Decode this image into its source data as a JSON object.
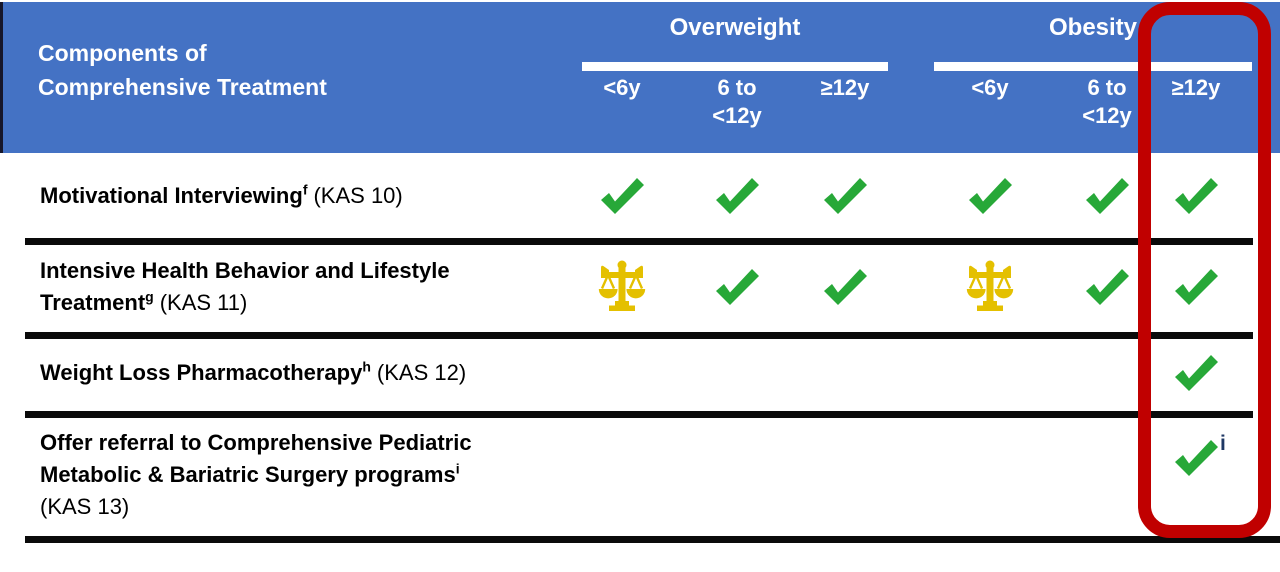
{
  "header": {
    "corner_label": "Components of\nComprehensive Treatment",
    "groups": [
      {
        "label": "Overweight"
      },
      {
        "label": "Obesity"
      }
    ],
    "age_labels": [
      "<6y",
      "6 to <12y",
      "≥12y",
      "<6y",
      "6 to <12y",
      "≥12y"
    ]
  },
  "rows": [
    {
      "label": "Motivational Interviewing",
      "superscript": "f",
      "kas": "(KAS 10)",
      "cells": [
        "check",
        "check",
        "check",
        "check",
        "check",
        "check"
      ]
    },
    {
      "label": "Intensive Health Behavior and Lifestyle\nTreatment",
      "superscript": "g",
      "kas": "(KAS 11)",
      "cells": [
        "scales",
        "check",
        "check",
        "scales",
        "check",
        "check"
      ]
    },
    {
      "label": "Weight Loss Pharmacotherapy",
      "superscript": "h",
      "kas": "(KAS 12)",
      "cells": [
        "none",
        "none",
        "none",
        "none",
        "none",
        "check"
      ]
    },
    {
      "label": "Offer referral to Comprehensive Pediatric\nMetabolic & Bariatric Surgery programs",
      "superscript": "i",
      "kas": "(KAS 13)",
      "cells": [
        "none",
        "none",
        "none",
        "none",
        "none",
        "check-i"
      ]
    }
  ],
  "icon_legend": {
    "check": "green-checkmark",
    "scales": "gold-balance-scale",
    "check-i": "green-checkmark-with-blue-superscript-i",
    "none": "empty-cell"
  },
  "highlight": {
    "description": "red rounded rectangle around the Obesity ≥12y column",
    "column_group": "Obesity",
    "column_age": "≥12y"
  },
  "colors": {
    "header_bg": "#4472C4",
    "header_text": "#FFFFFF",
    "check_green": "#27A838",
    "scales_gold": "#E4C000",
    "highlight_red": "#C00000",
    "body_text": "#000000",
    "sup_blue": "#1F3864",
    "line_black": "#0A0A0A"
  }
}
